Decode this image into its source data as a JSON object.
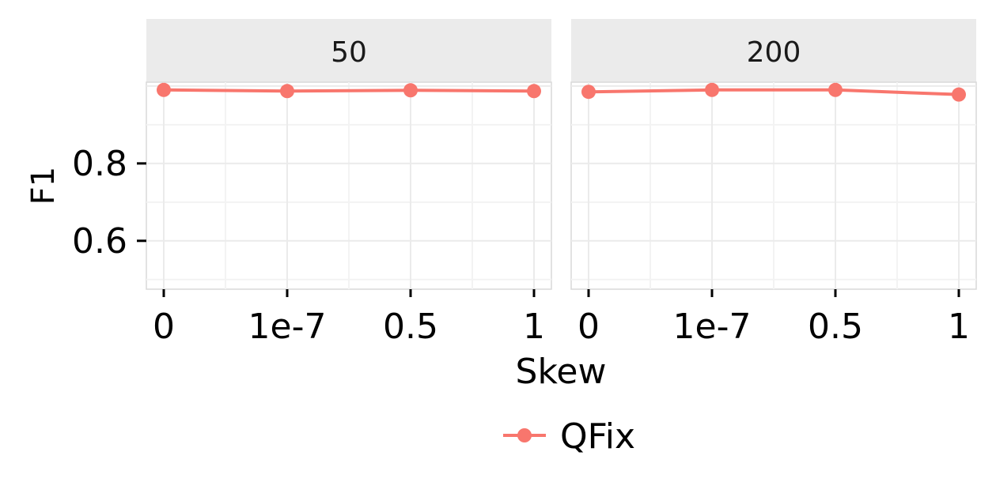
{
  "chart_data": {
    "type": "line",
    "facet_variable_values": [
      "50",
      "200"
    ],
    "categories": [
      "0",
      "1e-7",
      "0.5",
      "1"
    ],
    "xlabel": "Skew",
    "ylabel": "F1",
    "ylim": [
      0.475,
      1.01
    ],
    "yticks": [
      0.6,
      0.8
    ],
    "yticklabels": [
      "0.6",
      "0.8"
    ],
    "grid": true,
    "legend_position": "bottom",
    "colors": {
      "series": "#F8766D",
      "panel_background": "#ffffff",
      "strip_background": "#ebebeb",
      "grid": "#ebebeb"
    },
    "panels": [
      {
        "strip": "50",
        "series": [
          {
            "name": "QFix",
            "values": [
              0.99,
              0.987,
              0.989,
              0.987
            ]
          }
        ]
      },
      {
        "strip": "200",
        "series": [
          {
            "name": "QFix",
            "values": [
              0.985,
              0.99,
              0.99,
              0.978
            ]
          }
        ]
      }
    ],
    "legend": [
      {
        "label": "QFix",
        "color": "#F8766D"
      }
    ]
  }
}
